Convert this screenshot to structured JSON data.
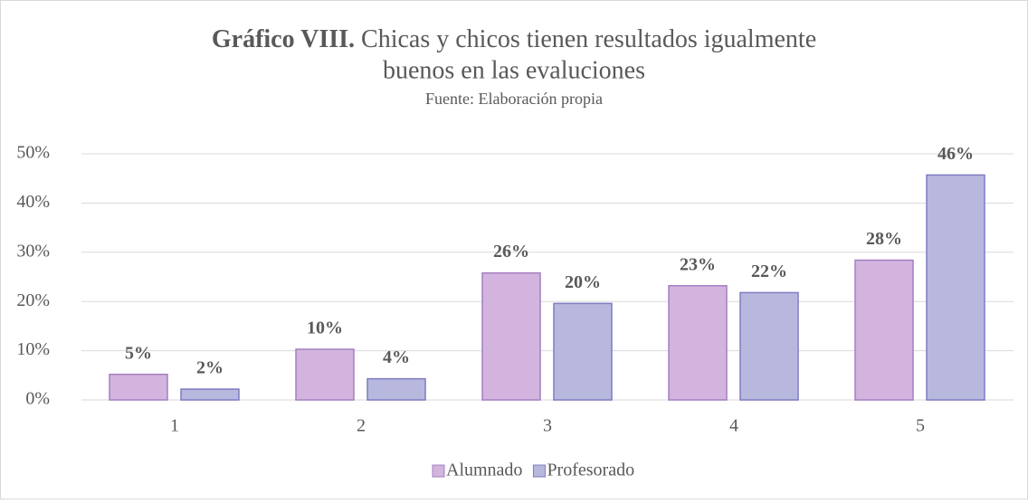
{
  "chart_data": {
    "type": "bar",
    "title": {
      "bold": "Gráfico VIII.",
      "lines": [
        "Chicas y chicos tienen resultados igualmente",
        "buenos en las evaluciones"
      ]
    },
    "subtitle": "Fuente: Elaboración propia",
    "categories": [
      "1",
      "2",
      "3",
      "4",
      "5"
    ],
    "series": [
      {
        "name": "Alumnado",
        "color": "#d2b4de",
        "stroke": "#a57fc2",
        "values": [
          5.2,
          10.3,
          25.8,
          23.2,
          28.4
        ],
        "value_labels": [
          "5%",
          "10%",
          "26%",
          "23%",
          "28%"
        ]
      },
      {
        "name": "Profesorado",
        "color": "#b8b8de",
        "stroke": "#7e7cc2",
        "values": [
          2.2,
          4.3,
          19.6,
          21.8,
          45.7
        ],
        "value_labels": [
          "2%",
          "4%",
          "20%",
          "22%",
          "46%"
        ]
      }
    ],
    "ylim": [
      0,
      50
    ],
    "yticks": [
      {
        "value": 0,
        "label": "0%"
      },
      {
        "value": 10,
        "label": "10%"
      },
      {
        "value": 20,
        "label": "20%"
      },
      {
        "value": 30,
        "label": "30%"
      },
      {
        "value": 40,
        "label": "40%"
      },
      {
        "value": 50,
        "label": "50%"
      }
    ],
    "grid": true,
    "legend": "bottom"
  }
}
